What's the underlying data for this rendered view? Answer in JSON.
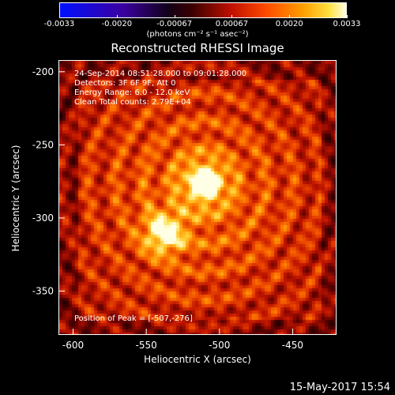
{
  "colorbar": {
    "ticks": [
      "-0.0033",
      "-0.0020",
      "-0.00067",
      "0.00067",
      "0.0020",
      "0.0033"
    ],
    "unit_label": "(photons cm⁻² s⁻¹ asec⁻²)"
  },
  "title": "Reconstructed RHESSI Image",
  "annotations": {
    "time": "24-Sep-2014 08:51:28.000 to 09:01:28.000",
    "detectors": "Detectors: 3F 6F 9F, Att 0",
    "energy": "Energy Range: 6.0 - 12.0 keV",
    "method": "Clean     Total counts: 2.79E+04",
    "peak": "Position of Peak = [-507,-276]"
  },
  "axes": {
    "xlabel": "Heliocentric X (arcsec)",
    "ylabel": "Heliocentric Y (arcsec)",
    "xticks": [
      "-600",
      "-550",
      "-500",
      "-450"
    ],
    "yticks": [
      "-200",
      "-250",
      "-300",
      "-350"
    ]
  },
  "footer_date": "15-May-2017 15:54",
  "chart_data": {
    "type": "heatmap",
    "title": "Reconstructed RHESSI Image",
    "xlabel": "Heliocentric X (arcsec)",
    "ylabel": "Heliocentric Y (arcsec)",
    "xlim": [
      -610,
      -420
    ],
    "ylim": [
      -380,
      -192
    ],
    "xticks": [
      -600,
      -550,
      -500,
      -450
    ],
    "yticks": [
      -200,
      -250,
      -300,
      -350
    ],
    "colorbar_range": [
      -0.0033,
      0.0033
    ],
    "colormap": "red-temperature (blue-black-red-yellow-white)",
    "peak": [
      -507,
      -276
    ],
    "sources": [
      {
        "x": -510,
        "y": -276,
        "intensity": 1.0
      },
      {
        "x": -538,
        "y": -311,
        "intensity": 0.85
      }
    ]
  }
}
